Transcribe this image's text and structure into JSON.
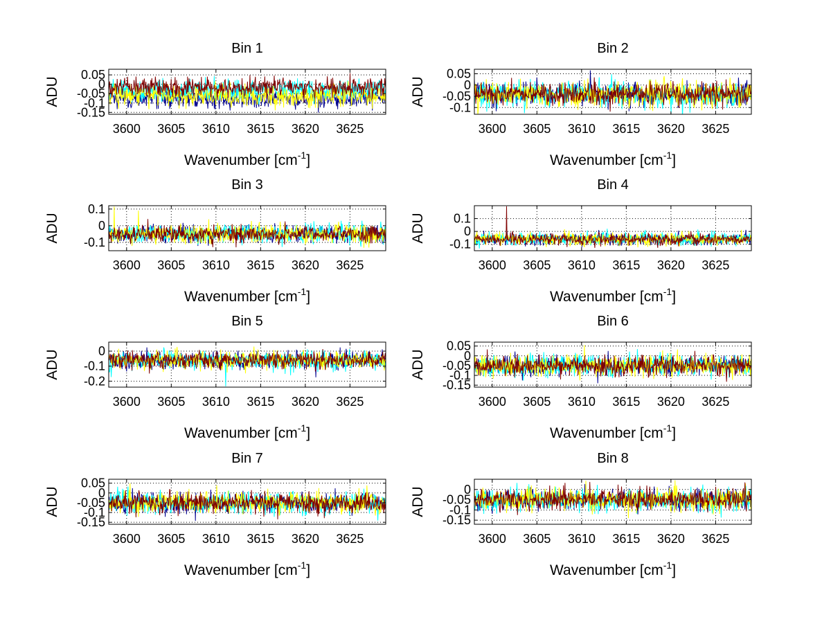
{
  "chart_data": {
    "type": "line",
    "layout": "4x2 grid of subplots",
    "series_colors": [
      "#00008f",
      "#00ffff",
      "#ffff00",
      "#800000"
    ],
    "subplots": [
      {
        "title": "Bin 1",
        "xlabel": "Wavenumber [cm",
        "xlabel_sup": "-1",
        "xlabel_close": "]",
        "ylabel": "ADU",
        "xlim": [
          3598,
          3629
        ],
        "ylim": [
          -0.16,
          0.08
        ],
        "xticks": [
          3600,
          3605,
          3610,
          3615,
          3620,
          3625
        ],
        "xtick_labels": [
          "3600",
          "3605",
          "3610",
          "3615",
          "3620",
          "3625"
        ],
        "yticks": [
          0.05,
          0,
          -0.05,
          -0.1,
          -0.15
        ],
        "ytick_labels": [
          "0.05",
          "0",
          "-0.05",
          "-0.1",
          "-0.15"
        ],
        "series_means": [
          -0.075,
          -0.035,
          -0.06,
          -0.015
        ],
        "series_noise": [
          0.025,
          0.028,
          0.028,
          0.025
        ],
        "spikes": []
      },
      {
        "title": "Bin 2",
        "xlabel": "Wavenumber [cm",
        "xlabel_sup": "-1",
        "xlabel_close": "]",
        "ylabel": "ADU",
        "xlim": [
          3598,
          3629
        ],
        "ylim": [
          -0.13,
          0.07
        ],
        "xticks": [
          3600,
          3605,
          3610,
          3615,
          3620,
          3625
        ],
        "xtick_labels": [
          "3600",
          "3605",
          "3610",
          "3615",
          "3620",
          "3625"
        ],
        "yticks": [
          0.05,
          0,
          -0.05,
          -0.1
        ],
        "ytick_labels": [
          "0.05",
          "0",
          "-0.05",
          "-0.1"
        ],
        "series_means": [
          -0.04,
          -0.04,
          -0.04,
          -0.04
        ],
        "series_noise": [
          0.025,
          0.028,
          0.03,
          0.025
        ],
        "spikes": [
          {
            "series": 0,
            "x": 3611,
            "y": 0.065
          }
        ]
      },
      {
        "title": "Bin 3",
        "xlabel": "Wavenumber [cm",
        "xlabel_sup": "-1",
        "xlabel_close": "]",
        "ylabel": "ADU",
        "xlim": [
          3598,
          3629
        ],
        "ylim": [
          -0.15,
          0.12
        ],
        "xticks": [
          3600,
          3605,
          3610,
          3615,
          3620,
          3625
        ],
        "xtick_labels": [
          "3600",
          "3605",
          "3610",
          "3615",
          "3620",
          "3625"
        ],
        "yticks": [
          0.1,
          0,
          -0.1
        ],
        "ytick_labels": [
          "0.1",
          "0",
          "-0.1"
        ],
        "series_means": [
          -0.05,
          -0.05,
          -0.05,
          -0.05
        ],
        "series_noise": [
          0.025,
          0.028,
          0.028,
          0.025
        ],
        "spikes": [
          {
            "series": 2,
            "x": 3598.6,
            "y": 0.115
          },
          {
            "series": 2,
            "x": 3601.3,
            "y": 0.09
          }
        ]
      },
      {
        "title": "Bin 4",
        "xlabel": "Wavenumber [cm",
        "xlabel_sup": "-1",
        "xlabel_close": "]",
        "ylabel": "ADU",
        "xlim": [
          3598,
          3629
        ],
        "ylim": [
          -0.15,
          0.2
        ],
        "xticks": [
          3600,
          3605,
          3610,
          3615,
          3620,
          3625
        ],
        "xtick_labels": [
          "3600",
          "3605",
          "3610",
          "3615",
          "3620",
          "3625"
        ],
        "yticks": [
          0.1,
          0,
          -0.1
        ],
        "ytick_labels": [
          "0.1",
          "0",
          "-0.1"
        ],
        "series_means": [
          -0.06,
          -0.06,
          -0.06,
          -0.06
        ],
        "series_noise": [
          0.022,
          0.025,
          0.025,
          0.022
        ],
        "spikes": [
          {
            "series": 3,
            "x": 3601.6,
            "y": 0.195
          }
        ]
      },
      {
        "title": "Bin 5",
        "xlabel": "Wavenumber [cm",
        "xlabel_sup": "-1",
        "xlabel_close": "]",
        "ylabel": "ADU",
        "xlim": [
          3598,
          3629
        ],
        "ylim": [
          -0.24,
          0.06
        ],
        "xticks": [
          3600,
          3605,
          3610,
          3615,
          3620,
          3625
        ],
        "xtick_labels": [
          "3600",
          "3605",
          "3610",
          "3615",
          "3620",
          "3625"
        ],
        "yticks": [
          0,
          -0.1,
          -0.2
        ],
        "ytick_labels": [
          "0",
          "-0.1",
          "-0.2"
        ],
        "series_means": [
          -0.06,
          -0.06,
          -0.06,
          -0.06
        ],
        "series_noise": [
          0.028,
          0.03,
          0.03,
          0.028
        ],
        "spikes": [
          {
            "series": 1,
            "x": 3611.1,
            "y": -0.235
          }
        ]
      },
      {
        "title": "Bin 6",
        "xlabel": "Wavenumber [cm",
        "xlabel_sup": "-1",
        "xlabel_close": "]",
        "ylabel": "ADU",
        "xlim": [
          3598,
          3629
        ],
        "ylim": [
          -0.16,
          0.07
        ],
        "xticks": [
          3600,
          3605,
          3610,
          3615,
          3620,
          3625
        ],
        "xtick_labels": [
          "3600",
          "3605",
          "3610",
          "3615",
          "3620",
          "3625"
        ],
        "yticks": [
          0.05,
          0,
          -0.05,
          -0.1,
          -0.15
        ],
        "ytick_labels": [
          "0.05",
          "0",
          "-0.05",
          "-0.1",
          "-0.15"
        ],
        "series_means": [
          -0.05,
          -0.05,
          -0.05,
          -0.05
        ],
        "series_noise": [
          0.025,
          0.028,
          0.028,
          0.025
        ],
        "spikes": []
      },
      {
        "title": "Bin 7",
        "xlabel": "Wavenumber [cm",
        "xlabel_sup": "-1",
        "xlabel_close": "]",
        "ylabel": "ADU",
        "xlim": [
          3598,
          3629
        ],
        "ylim": [
          -0.16,
          0.07
        ],
        "xticks": [
          3600,
          3605,
          3610,
          3615,
          3620,
          3625
        ],
        "xtick_labels": [
          "3600",
          "3605",
          "3610",
          "3615",
          "3620",
          "3625"
        ],
        "yticks": [
          0.05,
          0,
          -0.05,
          -0.1,
          -0.15
        ],
        "ytick_labels": [
          "0.05",
          "0",
          "-0.05",
          "-0.1",
          "-0.15"
        ],
        "series_means": [
          -0.05,
          -0.05,
          -0.05,
          -0.05
        ],
        "series_noise": [
          0.025,
          0.028,
          0.028,
          0.025
        ],
        "spikes": []
      },
      {
        "title": "Bin 8",
        "xlabel": "Wavenumber [cm",
        "xlabel_sup": "-1",
        "xlabel_close": "]",
        "ylabel": "ADU",
        "xlim": [
          3598,
          3629
        ],
        "ylim": [
          -0.17,
          0.05
        ],
        "xticks": [
          3600,
          3605,
          3610,
          3615,
          3620,
          3625
        ],
        "xtick_labels": [
          "3600",
          "3605",
          "3610",
          "3615",
          "3620",
          "3625"
        ],
        "yticks": [
          0,
          -0.05,
          -0.1,
          -0.15
        ],
        "ytick_labels": [
          "0",
          "-0.05",
          "-0.1",
          "-0.15"
        ],
        "series_means": [
          -0.05,
          -0.05,
          -0.05,
          -0.05
        ],
        "series_noise": [
          0.025,
          0.028,
          0.028,
          0.025
        ],
        "spikes": []
      }
    ]
  }
}
